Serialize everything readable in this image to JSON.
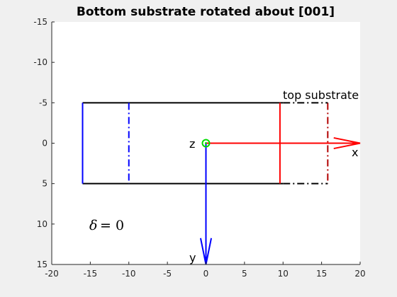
{
  "chart_data": {
    "type": "diagram",
    "title": "Bottom substrate rotated about [001]",
    "xlim": [
      -20,
      20
    ],
    "ylim": [
      -15,
      15
    ],
    "y_reversed": true,
    "grid": false,
    "x_ticks": [
      -20,
      -15,
      -10,
      -5,
      0,
      5,
      10,
      15,
      20
    ],
    "y_ticks": [
      -15,
      -10,
      -5,
      0,
      5,
      10,
      15
    ],
    "x_tick_labels": [
      "-20",
      "-15",
      "-10",
      "-5",
      "0",
      "5",
      "10",
      "15",
      "20"
    ],
    "y_tick_labels": [
      "-15",
      "-10",
      "-5",
      "0",
      "5",
      "10",
      "15"
    ],
    "annotations": {
      "top_substrate": "top substrate",
      "z_axis": "z",
      "x_axis": "x",
      "y_axis": "y",
      "delta_symbol": "δ",
      "delta_value": "= 0"
    },
    "segments": [
      {
        "name": "bottom-substrate-top-edge",
        "x": [
          -16,
          10
        ],
        "y": [
          -5,
          -5
        ],
        "color": "#000000",
        "style": "solid"
      },
      {
        "name": "bottom-substrate-bottom-edge",
        "x": [
          -16,
          10
        ],
        "y": [
          5,
          5
        ],
        "color": "#000000",
        "style": "solid"
      },
      {
        "name": "bottom-substrate-left-edge",
        "x": [
          -16,
          -16
        ],
        "y": [
          -5,
          5
        ],
        "color": "#0000ff",
        "style": "solid"
      },
      {
        "name": "bottom-substrate-inner-line",
        "x": [
          -10,
          -10
        ],
        "y": [
          -5,
          5
        ],
        "color": "#0000ff",
        "style": "dashdot"
      },
      {
        "name": "top-substrate-right-edge",
        "x": [
          9.6,
          9.6
        ],
        "y": [
          -5,
          5
        ],
        "color": "#ff0000",
        "style": "solid"
      },
      {
        "name": "top-substrate-far-edge",
        "x": [
          15.8,
          15.8
        ],
        "y": [
          -5,
          5
        ],
        "color": "#b20000",
        "style": "dashdot"
      },
      {
        "name": "top-substrate-top-edge",
        "x": [
          10,
          15.8
        ],
        "y": [
          -5,
          -5
        ],
        "color": "#000000",
        "style": "dashdot"
      },
      {
        "name": "top-substrate-bottom-edge",
        "x": [
          10,
          15.8
        ],
        "y": [
          5,
          5
        ],
        "color": "#000000",
        "style": "dashdot"
      }
    ],
    "arrows": [
      {
        "name": "x-axis-arrow",
        "from": [
          0,
          0
        ],
        "to": [
          20,
          0
        ],
        "color": "#ff0000"
      },
      {
        "name": "y-axis-arrow",
        "from": [
          0,
          0
        ],
        "to": [
          0,
          15
        ],
        "color": "#0000ff"
      }
    ],
    "origin_marker": {
      "x": 0,
      "y": 0,
      "color": "#00dd00"
    },
    "colors": {
      "axes_background": "#ffffff",
      "figure_background": "#f0f0f0"
    }
  }
}
